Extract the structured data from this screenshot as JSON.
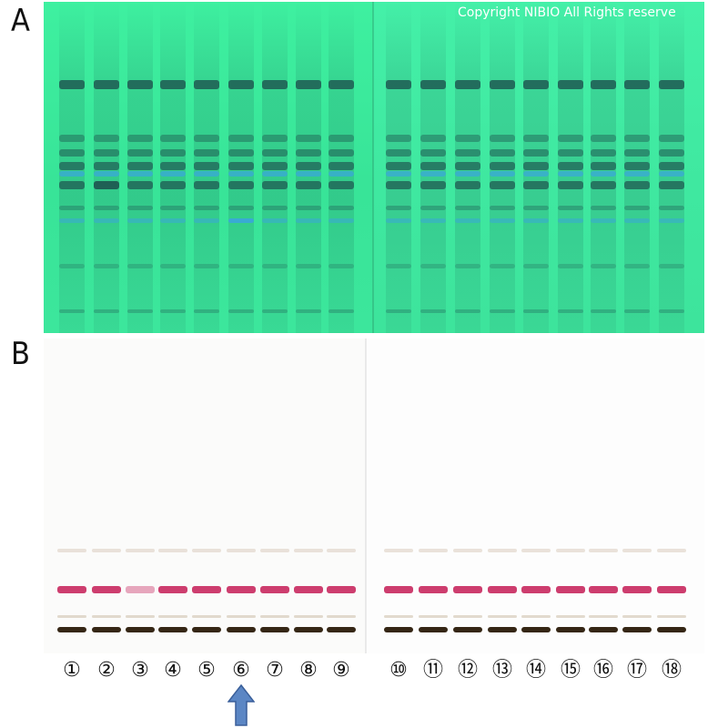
{
  "figure": {
    "panel_a_label": "A",
    "panel_b_label": "B",
    "copyright": "Copyright NIBIO All Rights reserve",
    "lane_labels": [
      "①",
      "②",
      "③",
      "④",
      "⑤",
      "⑥",
      "⑦",
      "⑧",
      "⑨",
      "⑩",
      "⑪",
      "⑫",
      "⑬",
      "⑭",
      "⑮",
      "⑯",
      "⑰",
      "⑱"
    ],
    "highlighted_lane": 6,
    "arrow_icon": "up-arrow-icon",
    "colors": {
      "plate_a_background": "#3de89c",
      "plate_a_dark_band": "#1f5a52",
      "plate_a_blue_band": "#3aa8d8",
      "plate_b_background": "#fcfcfb",
      "plate_b_magenta_band": "#c8285e",
      "plate_b_dark_band": "#2a1a08",
      "arrow_fill": "#5b86c4",
      "arrow_stroke": "#3a5f9a"
    }
  }
}
